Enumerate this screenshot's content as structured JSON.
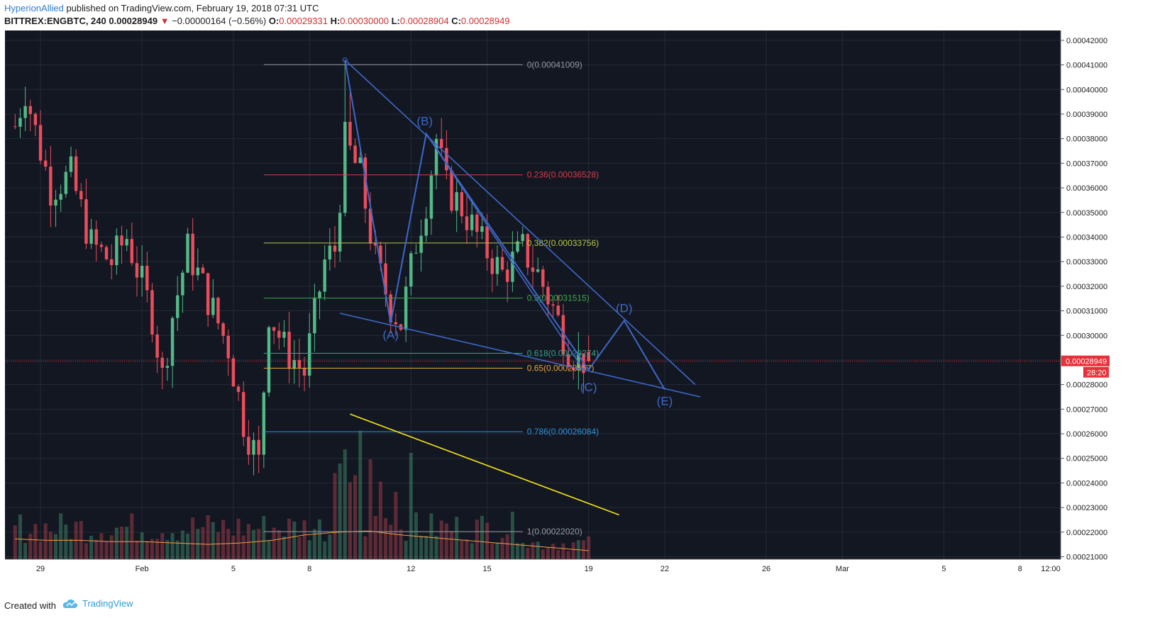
{
  "header": {
    "author": "HyperionAllied",
    "published": " published on TradingView.com, February 19, 2018 07:31 UTC",
    "symbol": "BITTREX:ENGBTC, 240",
    "last": "0.00028949",
    "change": "−0.00000164 (−0.56%)",
    "o_label": "O:",
    "o": "0.00029331",
    "h_label": "H:",
    "h": "0.00030000",
    "l_label": "L:",
    "l": "0.00028904",
    "c_label": "C:",
    "c": "0.00028949"
  },
  "footer": {
    "created": "Created with",
    "brand": "TradingView"
  },
  "colors": {
    "bg": "#131722",
    "grid": "#262a36",
    "axis_text": "#1e1e1e",
    "up": "#53b987",
    "down": "#eb4d5c",
    "wave": "#3d68c9",
    "yellow": "#f2e51a",
    "price_tag": "#e8303a"
  },
  "chart_data": {
    "type": "candlestick",
    "symbol": "BITTREX:ENGBTC",
    "timeframe": "240",
    "ylim": [
      0.000209,
      0.000424
    ],
    "xlim": [
      -2,
      206
    ],
    "y_ticks": [
      "0.00042000",
      "0.00041000",
      "0.00040000",
      "0.00039000",
      "0.00038000",
      "0.00037000",
      "0.00036000",
      "0.00035000",
      "0.00034000",
      "0.00033000",
      "0.00032000",
      "0.00031000",
      "0.00030000",
      "0.00028000",
      "0.00027000",
      "0.00026000",
      "0.00025000",
      "0.00024000",
      "0.00023000",
      "0.00022000",
      "0.00021000"
    ],
    "x_ticks": [
      {
        "label": "29",
        "x": 5
      },
      {
        "label": "Feb",
        "x": 25
      },
      {
        "label": "5",
        "x": 43
      },
      {
        "label": "8",
        "x": 58
      },
      {
        "label": "12",
        "x": 78
      },
      {
        "label": "15",
        "x": 93
      },
      {
        "label": "19",
        "x": 113
      },
      {
        "label": "22",
        "x": 128
      },
      {
        "label": "26",
        "x": 148
      },
      {
        "label": "Mar",
        "x": 163
      },
      {
        "label": "5",
        "x": 183
      },
      {
        "label": "8",
        "x": 198
      },
      {
        "label": "12:00",
        "x": 211
      }
    ],
    "last_price": {
      "label": "0.00028949",
      "value": 0.00028949,
      "countdown": "28:20"
    },
    "anchors": [
      [
        0,
        0.000385
      ],
      [
        2,
        0.0004
      ],
      [
        4,
        0.000383
      ],
      [
        7,
        0.00036
      ],
      [
        11,
        0.000365
      ],
      [
        15,
        0.000337
      ],
      [
        19,
        0.00033
      ],
      [
        22,
        0.00034
      ],
      [
        27,
        0.000308
      ],
      [
        29,
        0.000283
      ],
      [
        31,
        0.000308
      ],
      [
        34,
        0.000335
      ],
      [
        38,
        0.000315
      ],
      [
        42,
        0.000295
      ],
      [
        45,
        0.000265
      ],
      [
        48,
        0.000248
      ],
      [
        50,
        0.00031
      ],
      [
        53,
        0.000295
      ],
      [
        57,
        0.000285
      ],
      [
        61,
        0.00033
      ],
      [
        63,
        0.000335
      ],
      [
        65,
        0.000379
      ],
      [
        68,
        0.000365
      ],
      [
        71,
        0.00033
      ],
      [
        74,
        0.000312
      ],
      [
        76,
        0.000305
      ],
      [
        79,
        0.000338
      ],
      [
        81,
        0.000355
      ],
      [
        83,
        0.00038
      ],
      [
        85,
        0.00036
      ],
      [
        88,
        0.000352
      ],
      [
        92,
        0.000337
      ],
      [
        96,
        0.000325
      ],
      [
        100,
        0.000335
      ],
      [
        103,
        0.000325
      ],
      [
        106,
        0.000311
      ],
      [
        109,
        0.000295
      ],
      [
        111,
        0.00029
      ],
      [
        113,
        0.00029
      ]
    ],
    "volume_avg": [
      0.75,
      0.7,
      0.7,
      0.65,
      0.65,
      0.6,
      0.55,
      0.6,
      0.7,
      0.9,
      1.0,
      1.05,
      0.9,
      0.8,
      0.7,
      0.6,
      0.5,
      0.4,
      0.3
    ],
    "fibonacci": [
      {
        "level": "0",
        "price": 0.00041009,
        "label": "0(0.00041009)",
        "color": "#9598a1"
      },
      {
        "level": "0.236",
        "price": 0.00036528,
        "label": "0.236(0.00036528)",
        "color": "#d63c45"
      },
      {
        "level": "0.382",
        "price": 0.00033756,
        "label": "0.382(0.00033756)",
        "color": "#b6c64b"
      },
      {
        "level": "0.5",
        "price": 0.00031515,
        "label": "0.5(0.00031515)",
        "color": "#3fa84a"
      },
      {
        "level": "0.618",
        "price": 0.00029274,
        "label": "0.618(0.00029274)",
        "color": "#33a68e"
      },
      {
        "level": "0.65",
        "price": 0.00028667,
        "label": "0.65(0.00028667)",
        "color": "#e3a33a"
      },
      {
        "level": "0.786",
        "price": 0.00026084,
        "label": "0.786(0.00026084)",
        "color": "#3391d6"
      },
      {
        "level": "1",
        "price": 0.0002202,
        "label": "1(0.00022020)",
        "color": "#9598a1"
      }
    ],
    "fib_range_x": [
      49,
      100
    ],
    "wave_points": [
      {
        "label": "",
        "x": 65,
        "y": 0.000412
      },
      {
        "label": "(A)",
        "x": 74,
        "y": 0.000305
      },
      {
        "label": "(B)",
        "x": 81,
        "y": 0.000382
      },
      {
        "label": "(C)",
        "x": 113,
        "y": 0.000286
      },
      {
        "label": "(D)",
        "x": 120,
        "y": 0.000306
      },
      {
        "label": "(E)",
        "x": 128,
        "y": 0.000278
      }
    ],
    "trendlines": [
      {
        "name": "upper",
        "x1": 65,
        "y1": 0.000412,
        "x2": 134,
        "y2": 0.00028
      },
      {
        "name": "lower",
        "x1": 64,
        "y1": 0.000309,
        "x2": 135,
        "y2": 0.000275
      },
      {
        "name": "inner",
        "x1": 81,
        "y1": 0.000382,
        "x2": 112,
        "y2": 0.000286
      },
      {
        "name": "yellow",
        "x1": 66,
        "y1": 0.000268,
        "x2": 119,
        "y2": 0.000227
      }
    ]
  }
}
